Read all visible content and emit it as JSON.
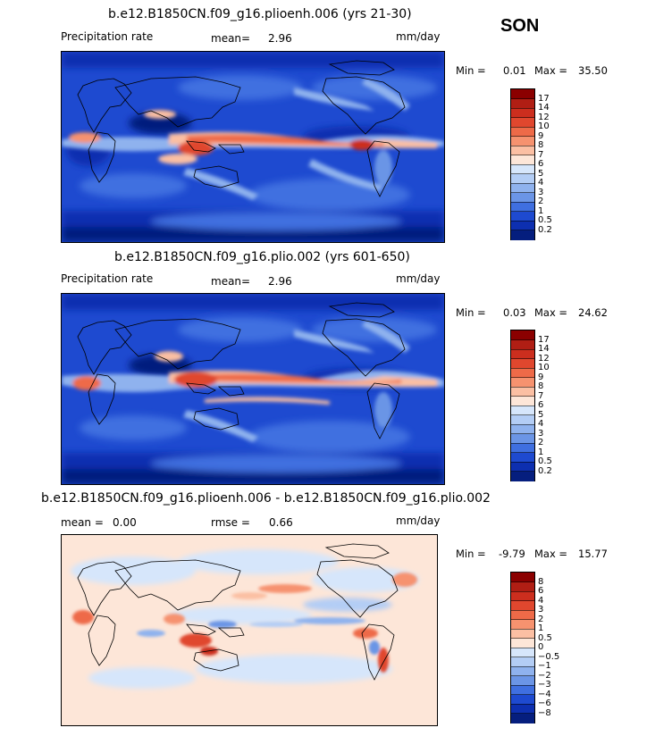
{
  "season": "SON",
  "panels": [
    {
      "id": "plioenh",
      "title": "b.e12.B1850CN.f09_g16.plioenh.006 (yrs 21-30)",
      "left_label": "Precipitation rate",
      "stat1_label": "mean=",
      "stat1_value": "2.96",
      "stat2_label": "",
      "stat2_value": "",
      "units": "mm/day",
      "min_label": "Min =",
      "min_value": "0.01",
      "max_label": "Max =",
      "max_value": "35.50",
      "colorbar": {
        "labels": [
          "17",
          "14",
          "12",
          "10",
          "9",
          "8",
          "7",
          "6",
          "5",
          "4",
          "3",
          "2",
          "1",
          "0.5",
          "0.2"
        ],
        "colors": [
          "#8b0000",
          "#b01e14",
          "#cc2e1e",
          "#e0472e",
          "#ee6a48",
          "#f6926f",
          "#fbbfa3",
          "#fde6d8",
          "#d6e6fb",
          "#b3cdf5",
          "#8fb2ee",
          "#6b95e6",
          "#3f6fe0",
          "#1e4ad0",
          "#0d2fb0",
          "#051e7e"
        ]
      }
    },
    {
      "id": "plio",
      "title": "b.e12.B1850CN.f09_g16.plio.002 (yrs 601-650)",
      "left_label": "Precipitation rate",
      "stat1_label": "mean=",
      "stat1_value": "2.96",
      "stat2_label": "",
      "stat2_value": "",
      "units": "mm/day",
      "min_label": "Min =",
      "min_value": "0.03",
      "max_label": "Max =",
      "max_value": "24.62",
      "colorbar": {
        "labels": [
          "17",
          "14",
          "12",
          "10",
          "9",
          "8",
          "7",
          "6",
          "5",
          "4",
          "3",
          "2",
          "1",
          "0.5",
          "0.2"
        ],
        "colors": [
          "#8b0000",
          "#b01e14",
          "#cc2e1e",
          "#e0472e",
          "#ee6a48",
          "#f6926f",
          "#fbbfa3",
          "#fde6d8",
          "#d6e6fb",
          "#b3cdf5",
          "#8fb2ee",
          "#6b95e6",
          "#3f6fe0",
          "#1e4ad0",
          "#0d2fb0",
          "#051e7e"
        ]
      }
    },
    {
      "id": "diff",
      "title": "b.e12.B1850CN.f09_g16.plioenh.006 - b.e12.B1850CN.f09_g16.plio.002",
      "left_label": "",
      "stat1_label": "mean =",
      "stat1_value": "0.00",
      "stat2_label": "rmse =",
      "stat2_value": "0.66",
      "units": "mm/day",
      "min_label": "Min =",
      "min_value": "-9.79",
      "max_label": "Max =",
      "max_value": "15.77",
      "colorbar": {
        "labels": [
          "8",
          "6",
          "4",
          "3",
          "2",
          "1",
          "0.5",
          "0",
          "−0.5",
          "−1",
          "−2",
          "−3",
          "−4",
          "−6",
          "−8"
        ],
        "colors": [
          "#8b0000",
          "#b01e14",
          "#cc2e1e",
          "#e0472e",
          "#ee6a48",
          "#f6926f",
          "#fbbfa3",
          "#fde6d8",
          "#d6e6fb",
          "#b3cdf5",
          "#8fb2ee",
          "#6b95e6",
          "#3f6fe0",
          "#1e4ad0",
          "#0d2fb0",
          "#051e7e"
        ]
      }
    }
  ]
}
